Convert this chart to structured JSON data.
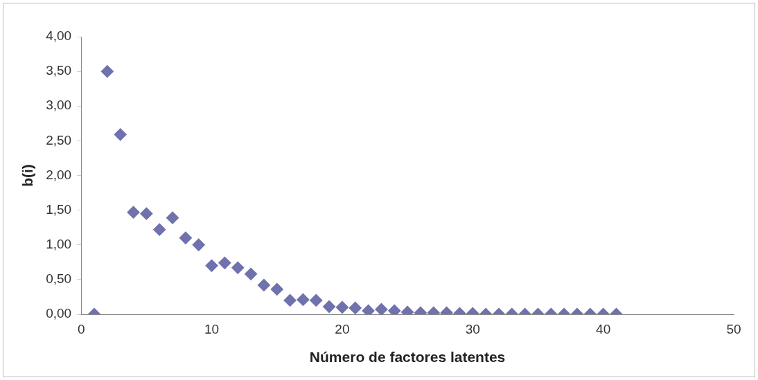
{
  "chart_data": {
    "type": "scatter",
    "xlabel": "Número de factores latentes",
    "ylabel": "b(i)",
    "x": [
      1,
      2,
      3,
      4,
      5,
      6,
      7,
      8,
      9,
      10,
      11,
      12,
      13,
      14,
      15,
      16,
      17,
      18,
      19,
      20,
      21,
      22,
      23,
      24,
      25,
      26,
      27,
      28,
      29,
      30,
      31,
      32,
      33,
      34,
      35,
      36,
      37,
      38,
      39,
      40,
      41
    ],
    "series": [
      {
        "color": "#6f72ad",
        "values": [
          0,
          3.5,
          2.59,
          1.47,
          1.45,
          1.22,
          1.39,
          1.1,
          1.0,
          0.7,
          0.74,
          0.67,
          0.58,
          0.42,
          0.36,
          0.2,
          0.21,
          0.2,
          0.11,
          0.1,
          0.09,
          0.05,
          0.07,
          0.05,
          0.03,
          0.02,
          0.02,
          0.02,
          0.01,
          0.01,
          0,
          0,
          0,
          0,
          0,
          0,
          0,
          0,
          0,
          0,
          0
        ]
      }
    ],
    "xlim": [
      0,
      50
    ],
    "xticks": [
      0,
      10,
      20,
      30,
      40,
      50
    ],
    "ylim": [
      0,
      4
    ],
    "yticks": [
      {
        "value": 0,
        "label": "0,00"
      },
      {
        "value": 0.5,
        "label": "0,50"
      },
      {
        "value": 1,
        "label": "1,00"
      },
      {
        "value": 1.5,
        "label": "1,50"
      },
      {
        "value": 2,
        "label": "2,00"
      },
      {
        "value": 2.5,
        "label": "2,50"
      },
      {
        "value": 3,
        "label": "3,00"
      },
      {
        "value": 3.5,
        "label": "3,50"
      },
      {
        "value": 4,
        "label": "4,00"
      }
    ],
    "grid": false,
    "legend": false,
    "marker": "diamond"
  }
}
